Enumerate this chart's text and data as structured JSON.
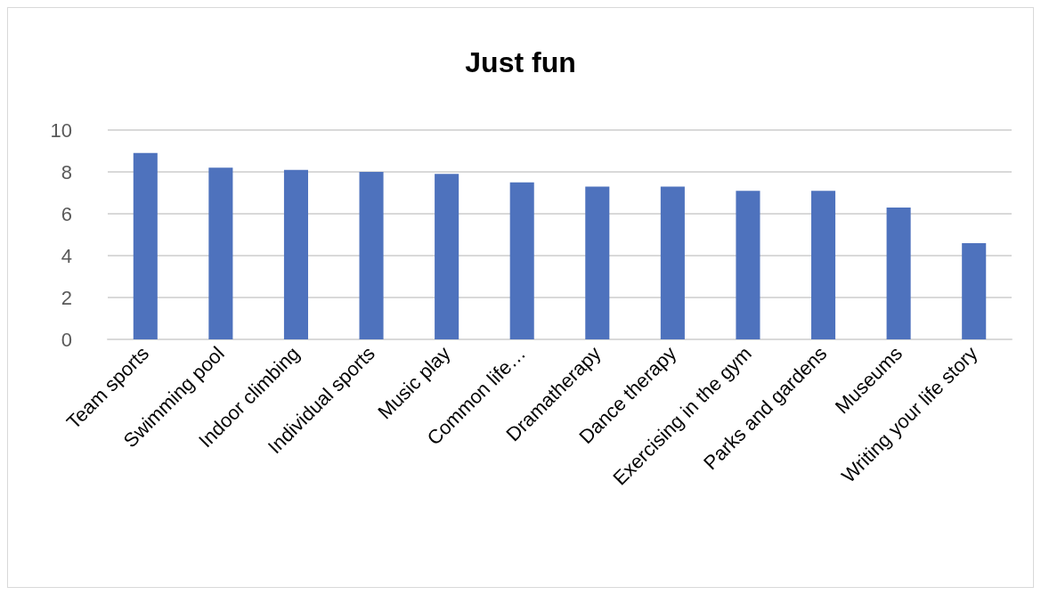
{
  "chart_data": {
    "type": "bar",
    "title": "Just fun",
    "categories": [
      "Team sports",
      "Swimming pool",
      "Indoor climbing",
      "Individual sports",
      "Music play",
      "Common life…",
      "Dramatherapy",
      "Dance therapy",
      "Exercising in the gym",
      "Parks and gardens",
      "Museums",
      "Writing your life story"
    ],
    "values": [
      8.9,
      8.2,
      8.1,
      8.0,
      7.9,
      7.5,
      7.3,
      7.3,
      7.1,
      7.1,
      6.3,
      4.6
    ],
    "color": "#4e72bd",
    "ylim": [
      0,
      10
    ],
    "yticks": [
      0,
      2,
      4,
      6,
      8,
      10
    ],
    "grid": "y"
  }
}
